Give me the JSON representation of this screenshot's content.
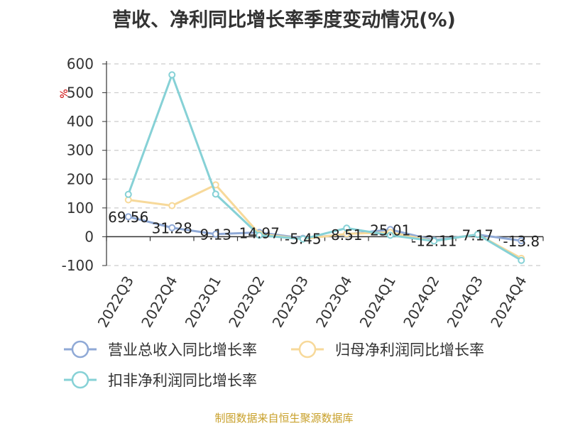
{
  "title": "营收、净利同比增长率季度变动情况(%)",
  "source": "制图数据来自恒生聚源数据库",
  "chart_data": {
    "type": "line",
    "title": "营收、净利同比增长率季度变动情况(%)",
    "ylabel": "%",
    "ylim": [
      -100,
      600
    ],
    "yticks": [
      "600",
      "500",
      "400",
      "300",
      "200",
      "100",
      "0",
      "-100"
    ],
    "categories": [
      "2022Q3",
      "2022Q4",
      "2023Q1",
      "2023Q2",
      "2023Q3",
      "2023Q4",
      "2024Q1",
      "2024Q2",
      "2024Q3",
      "2024Q4"
    ],
    "grid": true,
    "legend_position": "bottom",
    "series": [
      {
        "name": "营业总收入同比增长率",
        "color": "#8fa9d6",
        "values": [
          69.56,
          31.28,
          9.13,
          14.97,
          -5.45,
          8.51,
          25.01,
          -12.11,
          7.17,
          -13.8
        ],
        "labels": [
          "69.56",
          "31.28",
          "9.13",
          "14.97",
          "-5.45",
          "8.51",
          "25.01",
          "-12.11",
          "7.17",
          "-13.8"
        ]
      },
      {
        "name": "归母净利润同比增长率",
        "color": "#f7d99a",
        "values": [
          128,
          108,
          180,
          10,
          -8,
          10,
          15,
          -15,
          8,
          -75
        ]
      },
      {
        "name": "扣非净利润同比增长率",
        "color": "#86d1d6",
        "values": [
          147,
          562,
          148,
          5,
          -8,
          30,
          5,
          -15,
          8,
          -82
        ]
      }
    ]
  }
}
